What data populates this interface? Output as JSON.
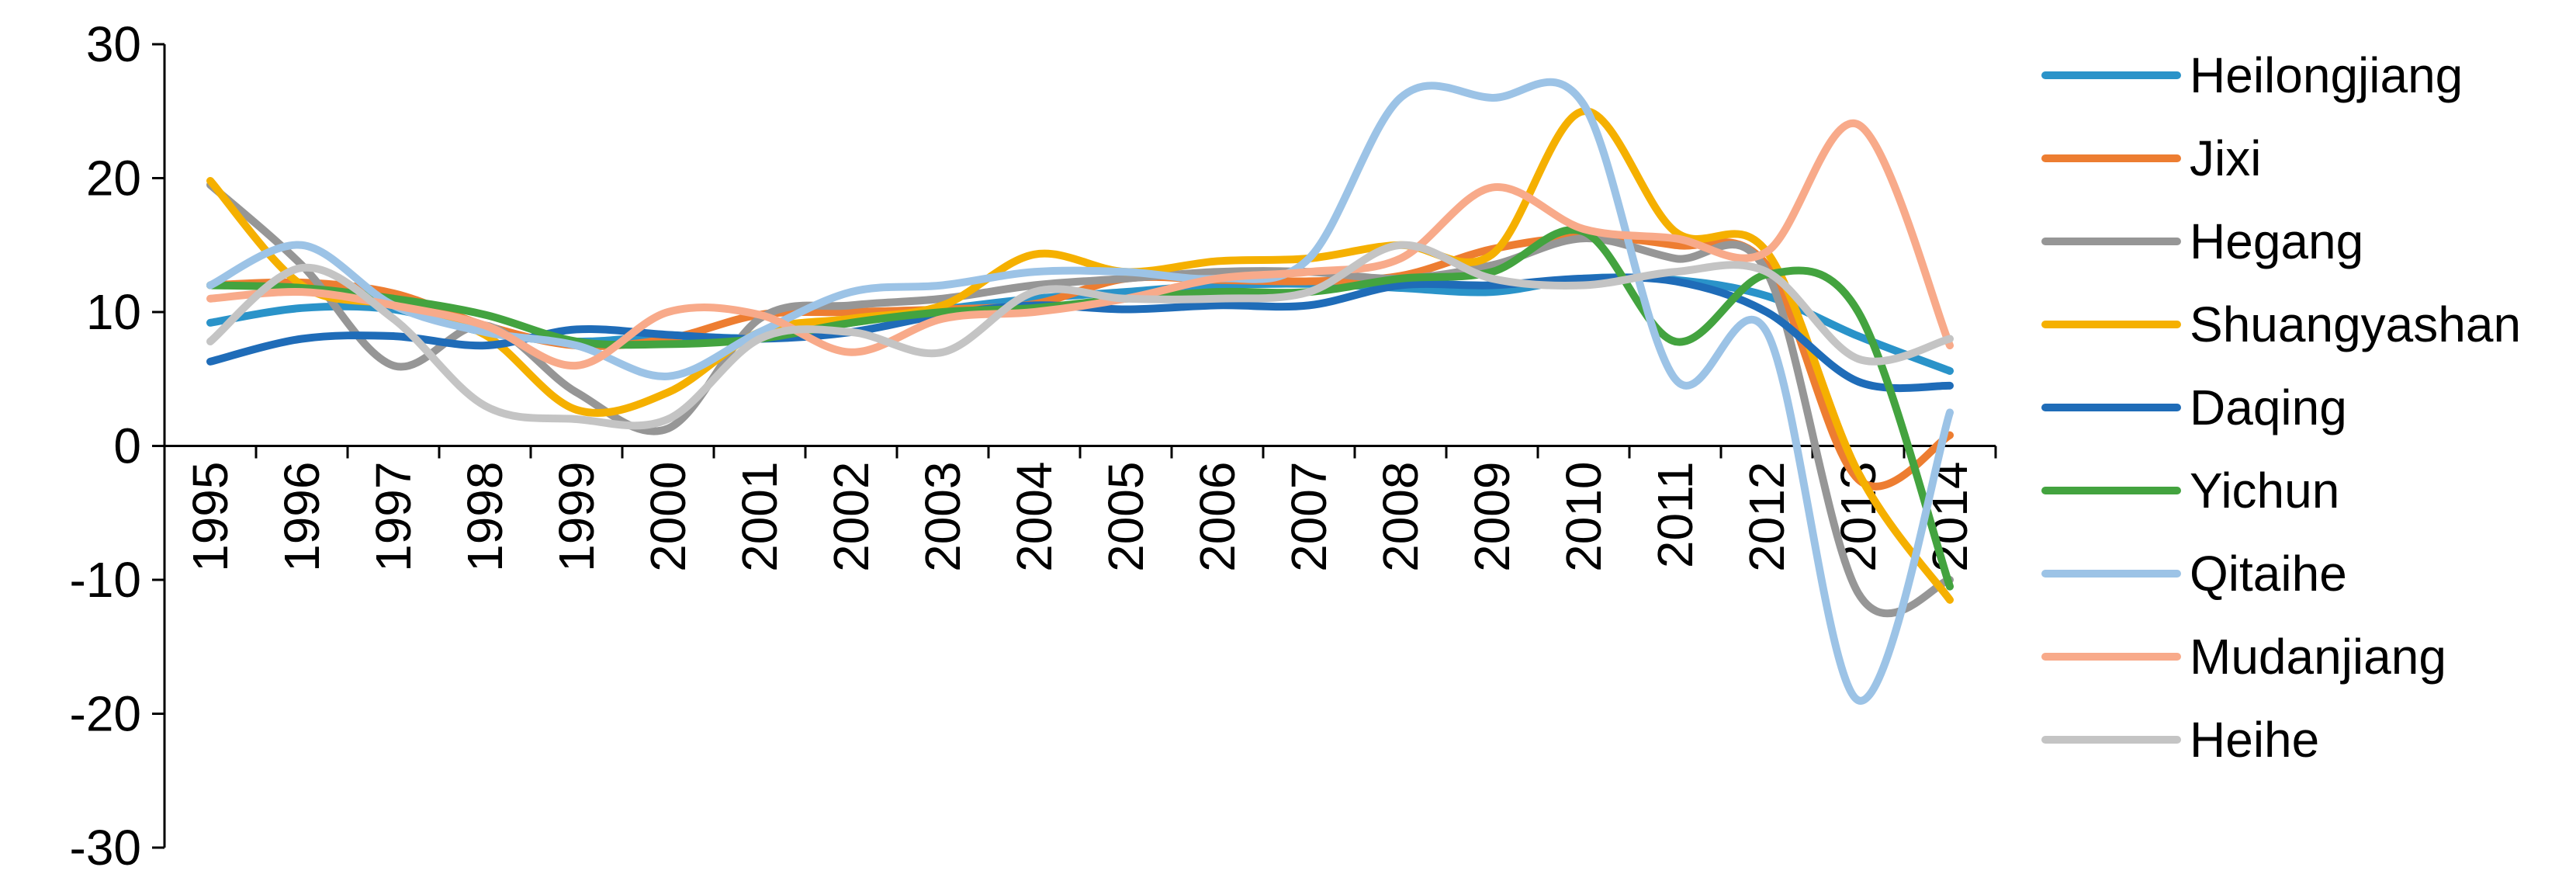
{
  "chart_data": {
    "type": "line",
    "categories": [
      "1995",
      "1996",
      "1997",
      "1998",
      "1999",
      "2000",
      "2001",
      "2002",
      "2003",
      "2004",
      "2005",
      "2006",
      "2007",
      "2008",
      "2009",
      "2010",
      "2011",
      "2012",
      "2013",
      "2014"
    ],
    "ylim": [
      -30,
      30
    ],
    "yticks": [
      -30,
      -20,
      -10,
      0,
      10,
      20,
      30
    ],
    "smooth": true,
    "legend": "right",
    "series": [
      {
        "name": "Heilongjiang",
        "color": "#2a93c9",
        "values": [
          9.2,
          10.3,
          10.2,
          8.5,
          7.8,
          8.2,
          8.1,
          9.2,
          10.2,
          11.0,
          11.5,
          12.0,
          12.1,
          11.8,
          11.5,
          12.5,
          12.4,
          11.2,
          8.2,
          5.6
        ]
      },
      {
        "name": "Jixi",
        "color": "#ed7d31",
        "values": [
          12,
          12.2,
          11.4,
          9,
          7.5,
          8,
          9.8,
          10,
          10.2,
          10.6,
          12.5,
          12.4,
          12.3,
          12.7,
          14.7,
          15.6,
          15,
          13.5,
          -2.5,
          0.8
        ]
      },
      {
        "name": "Hegang",
        "color": "#969696",
        "values": [
          19.5,
          13.5,
          6,
          9,
          4,
          1.3,
          9.5,
          10.5,
          11,
          12,
          12.5,
          13,
          13,
          12.5,
          13.5,
          15.5,
          14,
          13,
          -11,
          -10
        ]
      },
      {
        "name": "Shuangyashan",
        "color": "#f5b000",
        "values": [
          19.8,
          12,
          10.5,
          8.3,
          2.7,
          4,
          8.5,
          9.5,
          10.5,
          14.3,
          13,
          13.8,
          14,
          15,
          14.3,
          25,
          16,
          14.5,
          -2,
          -11.5
        ]
      },
      {
        "name": "Daqing",
        "color": "#1f6cb8",
        "values": [
          6.3,
          8,
          8.2,
          7.5,
          8.7,
          8.3,
          8,
          8.5,
          9.8,
          10.5,
          10.2,
          10.5,
          10.5,
          12,
          12,
          12.5,
          12.3,
          10,
          4.8,
          4.5
        ]
      },
      {
        "name": "Yichun",
        "color": "#43a33f",
        "values": [
          12,
          11.8,
          11,
          9.8,
          7.8,
          7.6,
          8,
          9.2,
          10,
          10.3,
          11,
          11.5,
          11.5,
          12.5,
          13,
          16,
          7.8,
          12.8,
          10,
          -10.5
        ]
      },
      {
        "name": "Qitaihe",
        "color": "#9cc3e6",
        "values": [
          12,
          15,
          10.5,
          8.5,
          7.5,
          5.2,
          8.5,
          11.5,
          12,
          13,
          13,
          12.5,
          14,
          26,
          26,
          25.5,
          5,
          8.5,
          -19,
          2.5
        ]
      },
      {
        "name": "Mudanjiang",
        "color": "#f8aa8a",
        "values": [
          11,
          11.5,
          10.5,
          9,
          6,
          10,
          9.8,
          7,
          9.5,
          10,
          11,
          12.5,
          13,
          14,
          19.3,
          16.2,
          15.5,
          14.5,
          24,
          7.5
        ]
      },
      {
        "name": "Heihe",
        "color": "#c4c4c4",
        "values": [
          7.8,
          13.3,
          9.5,
          3,
          2,
          2,
          8,
          8.5,
          7,
          11.5,
          11,
          11,
          11.5,
          15,
          12.5,
          12,
          13,
          13,
          6.5,
          8
        ]
      }
    ]
  }
}
